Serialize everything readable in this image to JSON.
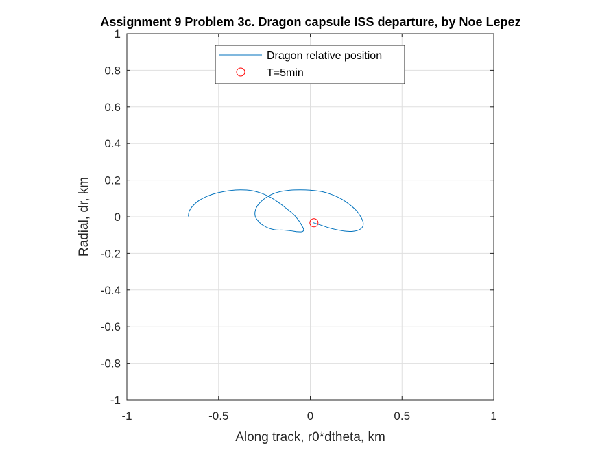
{
  "chart_data": {
    "type": "line",
    "title": "Assignment 9 Problem 3c. Dragon capsule ISS departure, by Noe Lepez",
    "xlabel": "Along track, r0*dtheta, km",
    "ylabel": "Radial, dr, km",
    "xlim": [
      -1,
      1
    ],
    "ylim": [
      -1,
      1
    ],
    "x_ticks": [
      "-1",
      "-0.5",
      "0",
      "0.5",
      "1"
    ],
    "y_ticks": [
      "-1",
      "-0.8",
      "-0.6",
      "-0.4",
      "-0.2",
      "0",
      "0.2",
      "0.4",
      "0.6",
      "0.8",
      "1"
    ],
    "grid": true,
    "legend_position": "top-center",
    "series": [
      {
        "name": "Dragon relative position",
        "kind": "line",
        "color": "#0072BD",
        "x": [
          -0.665,
          -0.66,
          -0.64,
          -0.605,
          -0.555,
          -0.5,
          -0.44,
          -0.38,
          -0.32,
          -0.265,
          -0.215,
          -0.17,
          -0.13,
          -0.09,
          -0.06,
          -0.042,
          -0.036,
          -0.045,
          -0.07,
          -0.105,
          -0.145,
          -0.185,
          -0.225,
          -0.26,
          -0.285,
          -0.3,
          -0.3,
          -0.285,
          -0.255,
          -0.215,
          -0.165,
          -0.11,
          -0.055,
          0.0,
          0.06,
          0.115,
          0.165,
          0.21,
          0.25,
          0.275,
          0.288,
          0.285,
          0.265,
          0.23,
          0.185,
          0.14,
          0.1,
          0.065,
          0.04,
          0.025,
          0.018,
          0.015
        ],
        "y": [
          0.002,
          0.03,
          0.06,
          0.09,
          0.115,
          0.132,
          0.143,
          0.147,
          0.143,
          0.128,
          0.105,
          0.076,
          0.045,
          0.012,
          -0.025,
          -0.055,
          -0.072,
          -0.082,
          -0.082,
          -0.077,
          -0.073,
          -0.072,
          -0.063,
          -0.045,
          -0.022,
          0.002,
          0.033,
          0.065,
          0.095,
          0.12,
          0.137,
          0.145,
          0.147,
          0.145,
          0.138,
          0.122,
          0.1,
          0.07,
          0.035,
          0.0,
          -0.03,
          -0.055,
          -0.072,
          -0.08,
          -0.078,
          -0.07,
          -0.06,
          -0.048,
          -0.04,
          -0.035,
          -0.033,
          -0.032
        ]
      },
      {
        "name": "T=5min",
        "kind": "marker",
        "marker": "circle",
        "color": "#FF0000",
        "x": [
          0.02
        ],
        "y": [
          -0.033
        ]
      }
    ]
  }
}
